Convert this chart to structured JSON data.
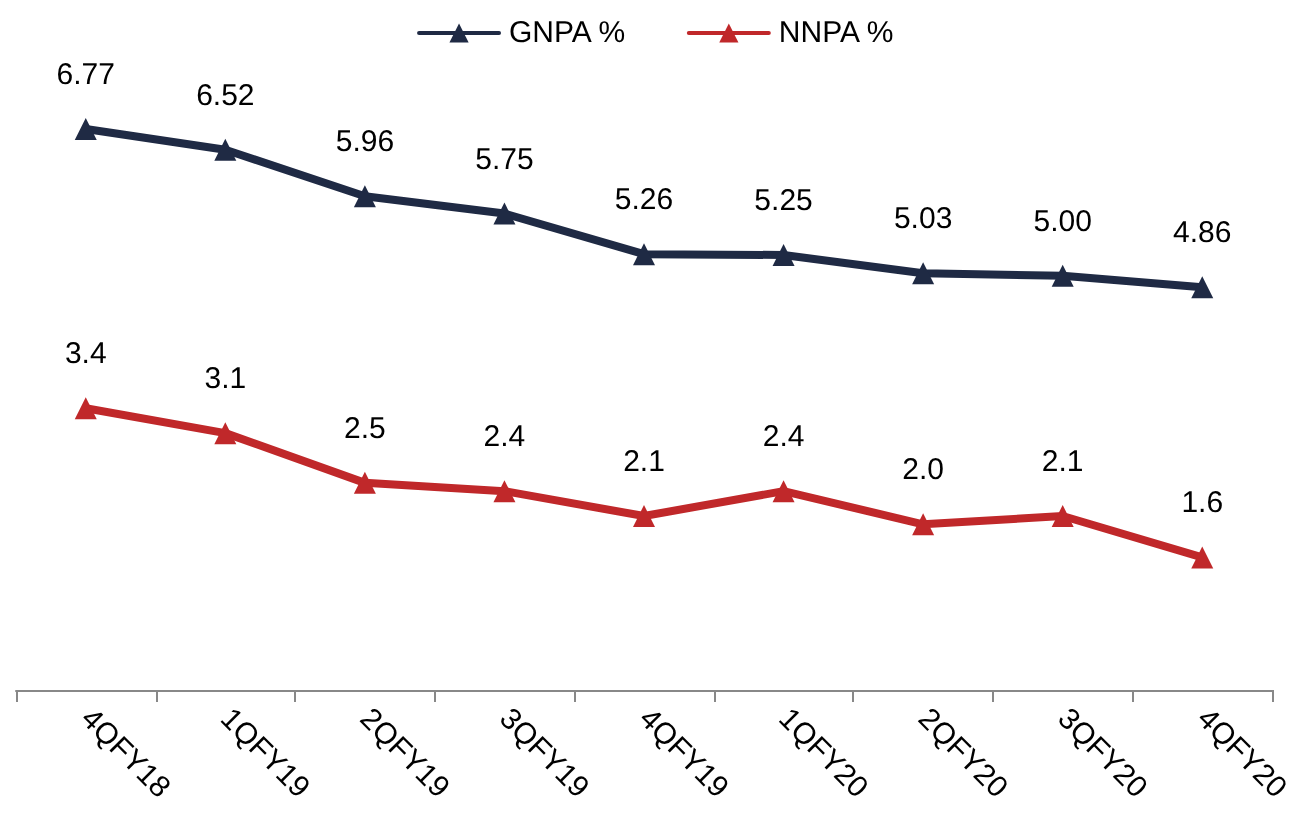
{
  "chart_data": {
    "type": "line",
    "categories": [
      "4QFY18",
      "1QFY19",
      "2QFY19",
      "3QFY19",
      "4QFY19",
      "1QFY20",
      "2QFY20",
      "3QFY20",
      "4QFY20"
    ],
    "series": [
      {
        "name": "GNPA %",
        "color": "#1f2a44",
        "values": [
          6.77,
          6.52,
          5.96,
          5.75,
          5.26,
          5.25,
          5.03,
          5.0,
          4.86
        ],
        "value_labels": [
          "6.77",
          "6.52",
          "5.96",
          "5.75",
          "5.26",
          "5.25",
          "5.03",
          "5.00",
          "4.86"
        ]
      },
      {
        "name": "NNPA %",
        "color": "#c0282a",
        "values": [
          3.4,
          3.1,
          2.5,
          2.4,
          2.1,
          2.4,
          2.0,
          2.1,
          1.6
        ],
        "value_labels": [
          "3.4",
          "3.1",
          "2.5",
          "2.4",
          "2.1",
          "2.4",
          "2.0",
          "2.1",
          "1.6"
        ]
      }
    ],
    "tick_labels": "x",
    "grid": false,
    "legend": "top",
    "marker": "triangle",
    "line_style": "solid"
  }
}
